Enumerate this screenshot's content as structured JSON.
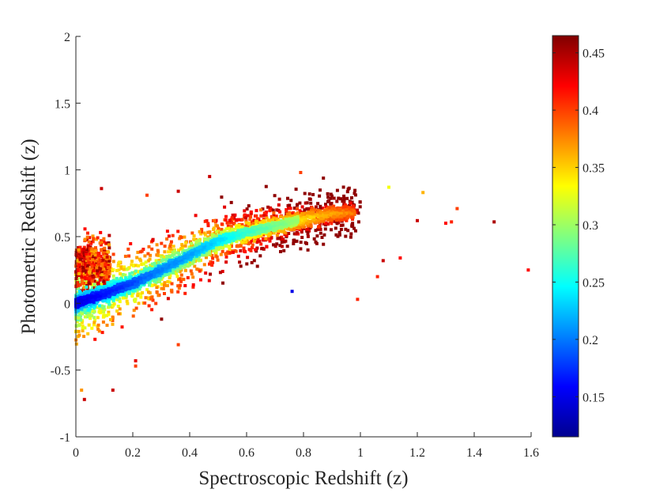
{
  "chart_data": {
    "type": "scatter",
    "title": "",
    "xlabel": "Spectroscopic Redshift (z)",
    "ylabel": "Photometric Redshift (z)",
    "xlim": [
      0,
      1.6
    ],
    "ylim": [
      -1,
      2
    ],
    "xticks": [
      0,
      0.2,
      0.4,
      0.6,
      0.8,
      1,
      1.2,
      1.4,
      1.6
    ],
    "xtick_labels": [
      "0",
      "0.2",
      "0.4",
      "0.6",
      "0.8",
      "1",
      "1.2",
      "1.4",
      "1.6"
    ],
    "yticks": [
      -1,
      -0.5,
      0,
      0.5,
      1,
      1.5,
      2
    ],
    "ytick_labels": [
      "-1",
      "-0.5",
      "0",
      "0.5",
      "1",
      "1.5",
      "2"
    ],
    "grid": false,
    "colorbar": {
      "range": [
        0.115,
        0.465
      ],
      "ticks": [
        0.15,
        0.2,
        0.25,
        0.3,
        0.35,
        0.4,
        0.45
      ],
      "tick_labels": [
        "0.15",
        "0.2",
        "0.25",
        "0.3",
        "0.35",
        "0.4",
        "0.45"
      ],
      "colormap": "jet",
      "colors": [
        "#00008f",
        "#0000ff",
        "#0080ff",
        "#00ffff",
        "#80ff80",
        "#ffff00",
        "#ff8000",
        "#ff0000",
        "#800000"
      ]
    },
    "density_band": {
      "description_samples": [
        {
          "x": 0.0,
          "y": 0.0,
          "c": 0.15
        },
        {
          "x": 0.1,
          "y": 0.07,
          "c": 0.17
        },
        {
          "x": 0.2,
          "y": 0.15,
          "c": 0.19
        },
        {
          "x": 0.3,
          "y": 0.25,
          "c": 0.21
        },
        {
          "x": 0.4,
          "y": 0.36,
          "c": 0.22
        },
        {
          "x": 0.5,
          "y": 0.47,
          "c": 0.24
        },
        {
          "x": 0.6,
          "y": 0.53,
          "c": 0.27
        },
        {
          "x": 0.7,
          "y": 0.58,
          "c": 0.29
        },
        {
          "x": 0.8,
          "y": 0.63,
          "c": 0.31
        },
        {
          "x": 0.9,
          "y": 0.67,
          "c": 0.33
        },
        {
          "x": 1.0,
          "y": 0.68,
          "c": 0.35
        }
      ]
    },
    "outliers": [
      {
        "x": 0.47,
        "y": 0.95,
        "c": 0.44
      },
      {
        "x": 0.79,
        "y": 0.98,
        "c": 0.4
      },
      {
        "x": 1.1,
        "y": 0.87,
        "c": 0.33
      },
      {
        "x": 1.22,
        "y": 0.83,
        "c": 0.36
      },
      {
        "x": 1.34,
        "y": 0.71,
        "c": 0.4
      },
      {
        "x": 1.32,
        "y": 0.61,
        "c": 0.41
      },
      {
        "x": 1.3,
        "y": 0.6,
        "c": 0.42
      },
      {
        "x": 1.47,
        "y": 0.61,
        "c": 0.45
      },
      {
        "x": 1.59,
        "y": 0.25,
        "c": 0.42
      },
      {
        "x": 1.2,
        "y": 0.62,
        "c": 0.44
      },
      {
        "x": 1.14,
        "y": 0.34,
        "c": 0.42
      },
      {
        "x": 1.08,
        "y": 0.32,
        "c": 0.44
      },
      {
        "x": 1.06,
        "y": 0.2,
        "c": 0.41
      },
      {
        "x": 0.99,
        "y": 0.03,
        "c": 0.41
      },
      {
        "x": 0.76,
        "y": 0.09,
        "c": 0.15
      },
      {
        "x": 0.36,
        "y": -0.31,
        "c": 0.4
      },
      {
        "x": 0.21,
        "y": -0.43,
        "c": 0.43
      },
      {
        "x": 0.21,
        "y": -0.47,
        "c": 0.4
      },
      {
        "x": 0.13,
        "y": -0.65,
        "c": 0.44
      },
      {
        "x": 0.02,
        "y": -0.65,
        "c": 0.37
      },
      {
        "x": 0.03,
        "y": -0.72,
        "c": 0.44
      },
      {
        "x": 0.09,
        "y": 0.86,
        "c": 0.44
      },
      {
        "x": 0.36,
        "y": 0.84,
        "c": 0.44
      },
      {
        "x": 0.25,
        "y": 0.81,
        "c": 0.4
      },
      {
        "x": 0.65,
        "y": 0.7,
        "c": 0.38
      }
    ]
  }
}
